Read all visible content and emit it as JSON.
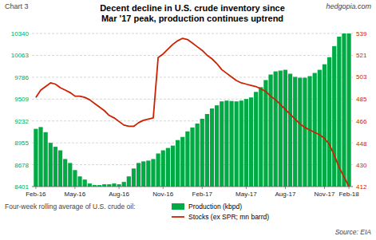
{
  "chart_data": {
    "type": "bar",
    "title": "Decent decline in U.S. crude inventory since\nMar '17 peak, production continues uptrend",
    "annotations": [
      "Chart 3",
      "hedgopia.com",
      "Four-week rolling average of U.S. crude oil:",
      "Source: EIA"
    ],
    "categories": [
      "Feb-16",
      null,
      null,
      null,
      null,
      null,
      null,
      null,
      "May-16",
      null,
      null,
      null,
      null,
      null,
      null,
      null,
      null,
      "Aug-16",
      null,
      null,
      null,
      null,
      null,
      null,
      null,
      null,
      "Nov-16",
      null,
      null,
      null,
      null,
      null,
      null,
      null,
      "Feb-17",
      null,
      null,
      null,
      null,
      null,
      null,
      null,
      null,
      "May-17",
      null,
      null,
      null,
      null,
      null,
      null,
      null,
      "Aug-17",
      null,
      null,
      null,
      null,
      null,
      null,
      null,
      "Nov-17",
      null,
      null,
      null,
      null,
      "Feb-18"
    ],
    "series": [
      {
        "name": "Production (kbpd)",
        "type": "bar",
        "color": "#00aa44",
        "values": [
          9132,
          9155,
          9090,
          8955,
          8905,
          8860,
          8750,
          8700,
          8610,
          8530,
          8490,
          8440,
          8420,
          8420,
          8430,
          8430,
          8440,
          8430,
          8460,
          8530,
          8630,
          8700,
          8720,
          8730,
          8750,
          8820,
          8860,
          8890,
          8920,
          8990,
          9030,
          9100,
          9150,
          9200,
          9260,
          9320,
          9390,
          9430,
          9480,
          9490,
          9485,
          9480,
          9490,
          9510,
          9530,
          9600,
          9660,
          9750,
          9820,
          9860,
          9870,
          9880,
          9830,
          9790,
          9780,
          9780,
          9800,
          9840,
          9880,
          9950,
          10040,
          10180,
          10300,
          10340,
          10340
        ]
      },
      {
        "name": "Stocks (ex SPR; mn barrd)",
        "type": "line",
        "color": "#cc2200",
        "axis": "y2",
        "values": [
          486,
          492,
          495,
          498,
          497,
          494,
          492,
          490,
          487,
          487,
          486,
          484,
          481,
          478,
          475,
          471,
          469,
          466,
          463,
          462,
          462,
          465,
          467,
          468,
          469,
          519,
          522,
          526,
          530,
          533,
          535,
          534,
          531,
          528,
          525,
          521,
          518,
          514,
          509,
          506,
          503,
          500,
          498,
          497,
          496,
          495,
          493,
          491,
          487,
          484,
          480,
          476,
          472,
          468,
          464,
          461,
          459,
          457,
          455,
          452,
          447,
          438,
          428,
          420,
          412
        ]
      }
    ],
    "ylim": [
      8401,
      10340
    ],
    "yticks": [
      8401,
      8678,
      8955,
      9232,
      9509,
      9786,
      10063,
      10340
    ],
    "y2lim": [
      412,
      539
    ],
    "y2ticks": [
      412,
      430,
      448,
      466,
      485,
      503,
      521,
      539
    ],
    "grid": true,
    "legend": "bottom"
  }
}
